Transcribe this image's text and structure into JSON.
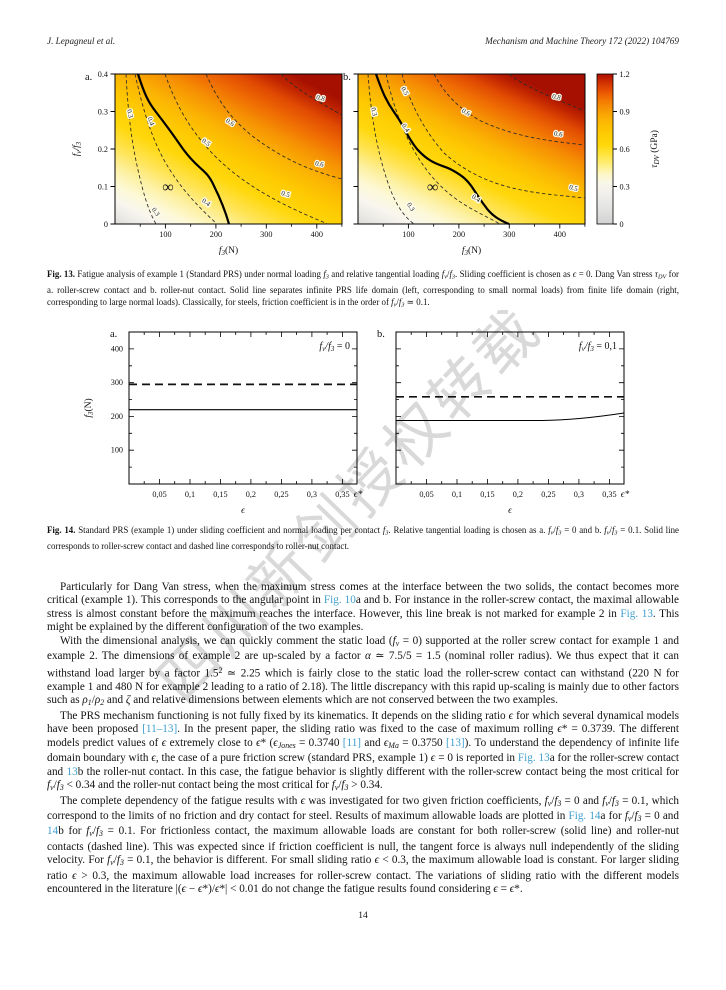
{
  "colors": {
    "link": "#3f9fce",
    "contour_line": "#2a2a2a",
    "heat_low": "#d2d2d2",
    "heat_mid": "#ffd708",
    "heat_high": "#ae0e00"
  },
  "header": {
    "authors": "J. Lepagneul et al.",
    "journal": "Mechanism and Machine Theory 172 (2022) 104769"
  },
  "watermark": "四川新剑授权转载",
  "fig13": {
    "letter_a": "a.",
    "letter_b": "b.",
    "x_ticks": [
      "100",
      "200",
      "300",
      "400"
    ],
    "y_ticks": [
      "0.4",
      "0.3",
      "0.2",
      "0.1",
      "0"
    ],
    "xlabel_parts": {
      "a": "f",
      "b": "3",
      "c": "(N)"
    },
    "ylabel_parts": {
      "a": "f",
      "b": "v",
      "c": "/f",
      "d": "3"
    },
    "infinity": "∞",
    "contour_labels_a": [
      "0.3",
      "0.4",
      "0.5",
      "0.6",
      "0.8",
      "0.6",
      "0.5",
      "0.4",
      "0.3"
    ],
    "contour_labels_b": [
      "0.5",
      "0.3",
      "0.4",
      "0.6",
      "0.8",
      "0.6",
      "0.5",
      "0.4",
      "0.3"
    ],
    "colorbar_ticks": [
      "0",
      "0.3",
      "0.6",
      "0.9",
      "1.2"
    ],
    "colorbar_tau": "τ",
    "colorbar_sub": "DV",
    "colorbar_unit": " (GPa)"
  },
  "fig13_caption": [
    [
      "b",
      "Fig. 13."
    ],
    [
      "t",
      "  Fatigue analysis of example 1 (Standard PRS) under normal loading "
    ],
    [
      "i",
      "f"
    ],
    [
      "sub",
      "3"
    ],
    [
      "t",
      " and relative tangential loading "
    ],
    [
      "i",
      "f"
    ],
    [
      "sub",
      "v"
    ],
    [
      "t",
      "/"
    ],
    [
      "i",
      "f"
    ],
    [
      "sub",
      "3"
    ],
    [
      "t",
      ". Sliding coefficient is chosen as "
    ],
    [
      "i",
      "ϵ"
    ],
    [
      "t",
      " = 0. Dang Van stress "
    ],
    [
      "i",
      "τ"
    ],
    [
      "sub",
      "DV"
    ],
    [
      "t",
      " for a. roller-screw contact and b. roller-nut contact. Solid line separates infinite PRS life domain (left, corresponding to small normal loads) from finite life domain (right, corresponding to large normal loads). Classically, for steels, friction coefficient is in the order of "
    ],
    [
      "i",
      "f"
    ],
    [
      "sub",
      "v"
    ],
    [
      "t",
      "/"
    ],
    [
      "i",
      "f"
    ],
    [
      "sub",
      "3"
    ],
    [
      "t",
      " ≃ 0.1."
    ]
  ],
  "fig14": {
    "letter_a": "a.",
    "letter_b": "b.",
    "y_ticks": [
      "400",
      "300",
      "200",
      "100"
    ],
    "x_ticks": [
      "0,05",
      "0,1",
      "0,15",
      "0,2",
      "0,25",
      "0,3",
      "0,35"
    ],
    "x_end": "ϵ*",
    "xlabel": "ϵ",
    "ylabel_parts": {
      "a": "f",
      "b": "3",
      "c": "(N)"
    },
    "legend_a_parts": {
      "a": "f",
      "b": "v",
      "c": "/f",
      "d": "3",
      "e": " = 0"
    },
    "legend_b_parts": {
      "a": "f",
      "b": "v",
      "c": "/f",
      "d": "3",
      "e": " = 0,1"
    }
  },
  "fig14_caption": [
    [
      "b",
      "Fig. 14."
    ],
    [
      "t",
      "  Standard PRS (example 1) under sliding coefficient and normal loading per contact "
    ],
    [
      "i",
      "f"
    ],
    [
      "sub",
      "3"
    ],
    [
      "t",
      ". Relative tangential loading is chosen as a. "
    ],
    [
      "i",
      "f"
    ],
    [
      "sub",
      "v"
    ],
    [
      "t",
      "/"
    ],
    [
      "i",
      "f"
    ],
    [
      "sub",
      "3"
    ],
    [
      "t",
      " = 0 and b. "
    ],
    [
      "i",
      "f"
    ],
    [
      "sub",
      "v"
    ],
    [
      "t",
      "/"
    ],
    [
      "i",
      "f"
    ],
    [
      "sub",
      "3"
    ],
    [
      "t",
      " = 0.1. Solid line corresponds to roller-screw contact and dashed line corresponds to roller-nut contact."
    ]
  ],
  "paragraphs": [
    [
      [
        "t",
        "Particularly for Dang Van stress, when the maximum stress comes at the interface between the two solids, the contact becomes more critical (example 1). This corresponds to the angular point in "
      ],
      [
        "a",
        "Fig. 10"
      ],
      [
        "t",
        "a and b. For instance in the roller-screw contact, the maximal allowable stress is almost constant before the maximum reaches the interface. However, this line break is not marked for example 2 in "
      ],
      [
        "a",
        "Fig. 13"
      ],
      [
        "t",
        ". This might be explained by the different configuration of the two examples."
      ]
    ],
    [
      [
        "t",
        "With the dimensional analysis, we can quickly comment the static load ("
      ],
      [
        "i",
        "f"
      ],
      [
        "sub",
        "v"
      ],
      [
        "t",
        " = 0) supported at the roller screw contact for example 1 and example 2. The dimensions of example 2 are up-scaled by a factor "
      ],
      [
        "i",
        "α"
      ],
      [
        "t",
        " ≃ 7.5/5 = 1.5 (nominal roller radius). We thus expect that it can withstand load larger by a factor 1.5"
      ],
      [
        "sup",
        "2"
      ],
      [
        "t",
        " ≃ 2.25 which is fairly close to the static load the roller-screw contact can withstand (220 N for example 1 and 480 N for example 2 leading to a ratio of 2.18). The little discrepancy with this rapid up-scaling is mainly due to other factors such as "
      ],
      [
        "i",
        "ρ"
      ],
      [
        "sub",
        "1"
      ],
      [
        "t",
        "/"
      ],
      [
        "i",
        "ρ"
      ],
      [
        "sub",
        "2"
      ],
      [
        "t",
        " and "
      ],
      [
        "i",
        "ζ"
      ],
      [
        "t",
        " and relative dimensions between elements which are not conserved between the two examples."
      ]
    ],
    [
      [
        "t",
        "The PRS mechanism functioning is not fully fixed by its kinematics. It depends on the sliding ratio "
      ],
      [
        "i",
        "ϵ"
      ],
      [
        "t",
        " for which several dynamical models have been proposed "
      ],
      [
        "a",
        "[11–13]"
      ],
      [
        "t",
        ". In the present paper, the sliding ratio was fixed to the case of maximum rolling "
      ],
      [
        "i",
        "ϵ"
      ],
      [
        "t",
        "* = 0.3739. The different models predict values of "
      ],
      [
        "i",
        "ϵ"
      ],
      [
        "t",
        " extremely close to "
      ],
      [
        "i",
        "ϵ"
      ],
      [
        "t",
        "* ("
      ],
      [
        "i",
        "ϵ"
      ],
      [
        "sub",
        "Jones"
      ],
      [
        "t",
        " = 0.3740 "
      ],
      [
        "a",
        "[11]"
      ],
      [
        "t",
        " and "
      ],
      [
        "i",
        "ϵ"
      ],
      [
        "sub",
        "Ma"
      ],
      [
        "t",
        " = 0.3750 "
      ],
      [
        "a",
        "[13]"
      ],
      [
        "t",
        "). To understand the dependency of infinite life domain boundary with "
      ],
      [
        "i",
        "ϵ"
      ],
      [
        "t",
        ", the case of a pure friction screw (standard PRS, example 1) "
      ],
      [
        "i",
        "ϵ"
      ],
      [
        "t",
        " = 0 is reported in "
      ],
      [
        "a",
        "Fig. 13"
      ],
      [
        "t",
        "a for the roller-screw contact and "
      ],
      [
        "a",
        "13"
      ],
      [
        "t",
        "b the roller-nut contact. In this case, the fatigue behavior is slightly different with the roller-screw contact being the most critical for "
      ],
      [
        "i",
        "f"
      ],
      [
        "sub",
        "v"
      ],
      [
        "t",
        "/"
      ],
      [
        "i",
        "f"
      ],
      [
        "sub",
        "3"
      ],
      [
        "t",
        " < 0.34 and the roller-nut contact being the most critical for "
      ],
      [
        "i",
        "f"
      ],
      [
        "sub",
        "v"
      ],
      [
        "t",
        "/"
      ],
      [
        "i",
        "f"
      ],
      [
        "sub",
        "3"
      ],
      [
        "t",
        " > 0.34."
      ]
    ],
    [
      [
        "t",
        "The complete dependency of the fatigue results with "
      ],
      [
        "i",
        "ϵ"
      ],
      [
        "t",
        " was investigated for two given friction coefficients, "
      ],
      [
        "i",
        "f"
      ],
      [
        "sub",
        "v"
      ],
      [
        "t",
        "/"
      ],
      [
        "i",
        "f"
      ],
      [
        "sub",
        "3"
      ],
      [
        "t",
        " = 0 and "
      ],
      [
        "i",
        "f"
      ],
      [
        "sub",
        "v"
      ],
      [
        "t",
        "/"
      ],
      [
        "i",
        "f"
      ],
      [
        "sub",
        "3"
      ],
      [
        "t",
        " = 0.1, which correspond to the limits of no friction and dry contact for steel. Results of maximum allowable loads are plotted in "
      ],
      [
        "a",
        "Fig. 14"
      ],
      [
        "t",
        "a for "
      ],
      [
        "i",
        "f"
      ],
      [
        "sub",
        "v"
      ],
      [
        "t",
        "/"
      ],
      [
        "i",
        "f"
      ],
      [
        "sub",
        "3"
      ],
      [
        "t",
        " = 0 and "
      ],
      [
        "a",
        "14"
      ],
      [
        "t",
        "b for "
      ],
      [
        "i",
        "f"
      ],
      [
        "sub",
        "v"
      ],
      [
        "t",
        "/"
      ],
      [
        "i",
        "f"
      ],
      [
        "sub",
        "3"
      ],
      [
        "t",
        " = 0.1. For frictionless contact, the maximum allowable loads are constant for both roller-screw (solid line) and roller-nut contacts (dashed line). This was expected since if friction coefficient is null, the tangent force is always null independently of the sliding velocity. For "
      ],
      [
        "i",
        "f"
      ],
      [
        "sub",
        "v"
      ],
      [
        "t",
        "/"
      ],
      [
        "i",
        "f"
      ],
      [
        "sub",
        "3"
      ],
      [
        "t",
        " = 0.1, the behavior is different. For small sliding ratio "
      ],
      [
        "i",
        "ϵ"
      ],
      [
        "t",
        " < 0.3, the maximum allowable load is constant. For larger sliding ratio "
      ],
      [
        "i",
        "ϵ"
      ],
      [
        "t",
        " > 0.3, the maximum allowable load increases for roller-screw contact. The variations of sliding ratio with the different models encountered in the literature |("
      ],
      [
        "i",
        "ϵ"
      ],
      [
        "t",
        " − "
      ],
      [
        "i",
        "ϵ"
      ],
      [
        "t",
        "*)/"
      ],
      [
        "i",
        "ϵ"
      ],
      [
        "t",
        "*| < 0.01 do not change the fatigue results found considering "
      ],
      [
        "i",
        "ϵ"
      ],
      [
        "t",
        " = "
      ],
      [
        "i",
        "ϵ"
      ],
      [
        "t",
        "*."
      ]
    ]
  ],
  "page_number": "14",
  "chart_data": [
    {
      "type": "heatmap",
      "id": "fig13a",
      "panel": "a",
      "xlabel": "f3 (N)",
      "ylabel": "fv/f3",
      "xlim": [
        0,
        450
      ],
      "ylim": [
        0,
        0.4
      ],
      "x_ticks": [
        100,
        200,
        300,
        400
      ],
      "y_ticks": [
        0,
        0.1,
        0.2,
        0.3,
        0.4
      ],
      "colorbar": {
        "label": "τDV (GPa)",
        "lim": [
          0,
          1.2
        ],
        "ticks": [
          0,
          0.3,
          0.6,
          0.9,
          1.2
        ]
      },
      "contour_levels": [
        0.3,
        0.4,
        0.5,
        0.6,
        0.8
      ],
      "solid_boundary_points": [
        [
          46,
          0.4
        ],
        [
          80,
          0.3
        ],
        [
          134,
          0.2
        ],
        [
          196,
          0.1
        ],
        [
          226,
          0
        ]
      ],
      "infinity_marker": [
        105,
        0.1
      ]
    },
    {
      "type": "heatmap",
      "id": "fig13b",
      "panel": "b",
      "xlabel": "f3 (N)",
      "ylabel": "fv/f3",
      "xlim": [
        0,
        450
      ],
      "ylim": [
        0,
        0.4
      ],
      "x_ticks": [
        100,
        200,
        300,
        400
      ],
      "y_ticks": [
        0,
        0.1,
        0.2,
        0.3,
        0.4
      ],
      "contour_levels": [
        0.3,
        0.4,
        0.5,
        0.6,
        0.8
      ],
      "solid_boundary_points": [
        [
          35,
          0.4
        ],
        [
          70,
          0.3
        ],
        [
          114,
          0.2
        ],
        [
          185,
          0.15
        ],
        [
          224,
          0.1
        ],
        [
          298,
          0
        ]
      ],
      "infinity_marker": [
        148,
        0.1
      ]
    },
    {
      "type": "line",
      "id": "fig14a",
      "panel": "a",
      "legend": "fv/f3 = 0",
      "xlabel": "ϵ",
      "ylabel": "f3 (N)",
      "xlim": [
        0,
        0.374
      ],
      "ylim": [
        0,
        450
      ],
      "x_ticks": [
        0.05,
        0.1,
        0.15,
        0.2,
        0.25,
        0.3,
        0.35
      ],
      "y_ticks": [
        100,
        200,
        300,
        400
      ],
      "series": [
        {
          "name": "roller-screw contact (solid)",
          "style": "solid",
          "value": 220,
          "shape": "constant"
        },
        {
          "name": "roller-nut contact (dashed)",
          "style": "dashed",
          "value": 295,
          "shape": "constant"
        }
      ]
    },
    {
      "type": "line",
      "id": "fig14b",
      "panel": "b",
      "legend": "fv/f3 = 0,1",
      "xlabel": "ϵ",
      "ylabel": "f3 (N)",
      "xlim": [
        0,
        0.374
      ],
      "ylim": [
        0,
        450
      ],
      "x_ticks": [
        0.05,
        0.1,
        0.15,
        0.2,
        0.25,
        0.3,
        0.35
      ],
      "y_ticks": [
        100,
        200,
        300,
        400
      ],
      "series": [
        {
          "name": "roller-screw contact (solid)",
          "style": "solid",
          "shape": "flat-then-rise",
          "points": [
            [
              0,
              188
            ],
            [
              0.24,
              188
            ],
            [
              0.374,
              210
            ]
          ]
        },
        {
          "name": "roller-nut contact (dashed)",
          "style": "dashed",
          "value": 258,
          "shape": "constant"
        }
      ]
    }
  ]
}
